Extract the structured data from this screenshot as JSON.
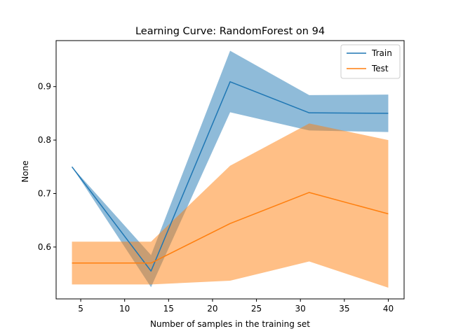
{
  "chart_data": {
    "type": "line",
    "title": "Learning Curve: RandomForest on 94",
    "xlabel": "Number of samples in the training set",
    "ylabel": "None",
    "xlim": [
      2.2,
      41.8
    ],
    "ylim": [
      0.503,
      0.986
    ],
    "xticks": [
      5,
      10,
      15,
      20,
      25,
      30,
      35,
      40
    ],
    "yticks": [
      0.6,
      0.7,
      0.8,
      0.9
    ],
    "grid": false,
    "legend_position": "top-right",
    "x": [
      4,
      13,
      22,
      31,
      40
    ],
    "series": [
      {
        "name": "Train",
        "color": "#1f77b4",
        "band_color": "#1f77b4",
        "band_opacity": 0.5,
        "mean": [
          0.75,
          0.555,
          0.909,
          0.851,
          0.85
        ],
        "upper": [
          0.75,
          0.585,
          0.967,
          0.884,
          0.885
        ],
        "lower": [
          0.75,
          0.525,
          0.852,
          0.818,
          0.815
        ]
      },
      {
        "name": "Test",
        "color": "#ff7f0e",
        "band_color": "#ff7f0e",
        "band_opacity": 0.5,
        "mean": [
          0.57,
          0.57,
          0.644,
          0.702,
          0.662
        ],
        "upper": [
          0.61,
          0.61,
          0.752,
          0.831,
          0.8
        ],
        "lower": [
          0.53,
          0.53,
          0.537,
          0.573,
          0.524
        ]
      }
    ]
  }
}
